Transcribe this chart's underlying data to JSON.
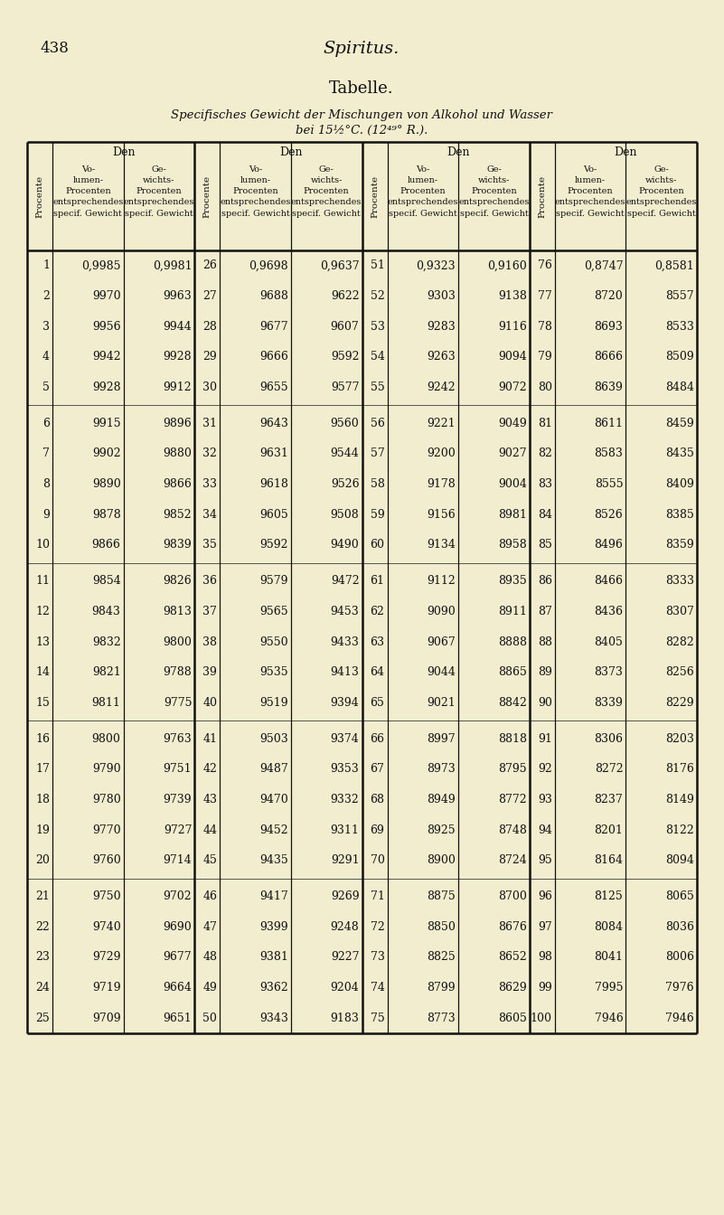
{
  "page_num": "438",
  "main_title": "Spiritus.",
  "sub_title": "Tabelle.",
  "subtitle2": "Specifisches Gewicht der Mischungen von Alkohol und Wasser",
  "subtitle3": "bei 15½°C. (12⁴⁹° R.).",
  "bg_color": "#f2edcf",
  "text_color": "#111111",
  "table_data": [
    [
      1,
      "0,9985",
      "0,9981",
      26,
      "0,9698",
      "0,9637",
      51,
      "0,9323",
      "0,9160",
      76,
      "0,8747",
      "0,8581"
    ],
    [
      2,
      "9970",
      "9963",
      27,
      "9688",
      "9622",
      52,
      "9303",
      "9138",
      77,
      "8720",
      "8557"
    ],
    [
      3,
      "9956",
      "9944",
      28,
      "9677",
      "9607",
      53,
      "9283",
      "9116",
      78,
      "8693",
      "8533"
    ],
    [
      4,
      "9942",
      "9928",
      29,
      "9666",
      "9592",
      54,
      "9263",
      "9094",
      79,
      "8666",
      "8509"
    ],
    [
      5,
      "9928",
      "9912",
      30,
      "9655",
      "9577",
      55,
      "9242",
      "9072",
      80,
      "8639",
      "8484"
    ],
    [
      6,
      "9915",
      "9896",
      31,
      "9643",
      "9560",
      56,
      "9221",
      "9049",
      81,
      "8611",
      "8459"
    ],
    [
      7,
      "9902",
      "9880",
      32,
      "9631",
      "9544",
      57,
      "9200",
      "9027",
      82,
      "8583",
      "8435"
    ],
    [
      8,
      "9890",
      "9866",
      33,
      "9618",
      "9526",
      58,
      "9178",
      "9004",
      83,
      "8555",
      "8409"
    ],
    [
      9,
      "9878",
      "9852",
      34,
      "9605",
      "9508",
      59,
      "9156",
      "8981",
      84,
      "8526",
      "8385"
    ],
    [
      10,
      "9866",
      "9839",
      35,
      "9592",
      "9490",
      60,
      "9134",
      "8958",
      85,
      "8496",
      "8359"
    ],
    [
      11,
      "9854",
      "9826",
      36,
      "9579",
      "9472",
      61,
      "9112",
      "8935",
      86,
      "8466",
      "8333"
    ],
    [
      12,
      "9843",
      "9813",
      37,
      "9565",
      "9453",
      62,
      "9090",
      "8911",
      87,
      "8436",
      "8307"
    ],
    [
      13,
      "9832",
      "9800",
      38,
      "9550",
      "9433",
      63,
      "9067",
      "8888",
      88,
      "8405",
      "8282"
    ],
    [
      14,
      "9821",
      "9788",
      39,
      "9535",
      "9413",
      64,
      "9044",
      "8865",
      89,
      "8373",
      "8256"
    ],
    [
      15,
      "9811",
      "9775",
      40,
      "9519",
      "9394",
      65,
      "9021",
      "8842",
      90,
      "8339",
      "8229"
    ],
    [
      16,
      "9800",
      "9763",
      41,
      "9503",
      "9374",
      66,
      "8997",
      "8818",
      91,
      "8306",
      "8203"
    ],
    [
      17,
      "9790",
      "9751",
      42,
      "9487",
      "9353",
      67,
      "8973",
      "8795",
      92,
      "8272",
      "8176"
    ],
    [
      18,
      "9780",
      "9739",
      43,
      "9470",
      "9332",
      68,
      "8949",
      "8772",
      93,
      "8237",
      "8149"
    ],
    [
      19,
      "9770",
      "9727",
      44,
      "9452",
      "9311",
      69,
      "8925",
      "8748",
      94,
      "8201",
      "8122"
    ],
    [
      20,
      "9760",
      "9714",
      45,
      "9435",
      "9291",
      70,
      "8900",
      "8724",
      95,
      "8164",
      "8094"
    ],
    [
      21,
      "9750",
      "9702",
      46,
      "9417",
      "9269",
      71,
      "8875",
      "8700",
      96,
      "8125",
      "8065"
    ],
    [
      22,
      "9740",
      "9690",
      47,
      "9399",
      "9248",
      72,
      "8850",
      "8676",
      97,
      "8084",
      "8036"
    ],
    [
      23,
      "9729",
      "9677",
      48,
      "9381",
      "9227",
      73,
      "8825",
      "8652",
      98,
      "8041",
      "8006"
    ],
    [
      24,
      "9719",
      "9664",
      49,
      "9362",
      "9204",
      74,
      "8799",
      "8629",
      99,
      "7995",
      "7976"
    ],
    [
      25,
      "9709",
      "9651",
      50,
      "9343",
      "9183",
      75,
      "8773",
      "8605",
      100,
      "7946",
      "7946"
    ]
  ]
}
